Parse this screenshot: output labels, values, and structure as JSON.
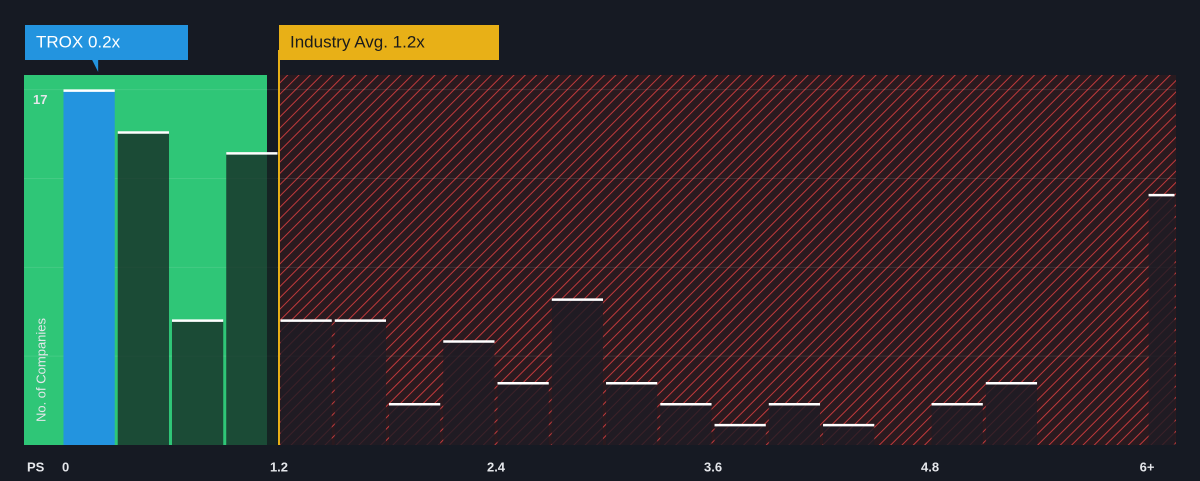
{
  "chart_data": {
    "type": "histogram",
    "x_label": "PS",
    "y_label": "No. of Companies",
    "bins": [
      0,
      0.3,
      0.6,
      0.9,
      1.2,
      1.5,
      1.8,
      2.1,
      2.4,
      2.7,
      3.0,
      3.3,
      3.6,
      3.9,
      4.2,
      4.5,
      4.8,
      5.1,
      5.4,
      5.7,
      6.0
    ],
    "values": [
      17,
      15,
      6,
      14,
      6,
      6,
      2,
      5,
      3,
      7,
      3,
      2,
      1,
      2,
      1,
      0,
      2,
      3,
      0,
      0
    ],
    "overflow_value": 12,
    "xlim": [
      -0.21,
      6.16
    ],
    "ylim": [
      0,
      17.7
    ],
    "xticks": [
      0,
      1.2,
      2.4,
      3.6,
      4.8,
      {
        "value": 6,
        "label": "6+"
      }
    ],
    "yticks": [
      17
    ],
    "grid_lines": [
      4.25,
      8.5,
      12.75,
      17
    ],
    "company": {
      "label": "TROX 0.2x",
      "value": 0.2,
      "color": "#2394df"
    },
    "industry": {
      "label": "Industry Avg. 1.2x",
      "value": 1.2,
      "color": "#e8b017"
    }
  }
}
